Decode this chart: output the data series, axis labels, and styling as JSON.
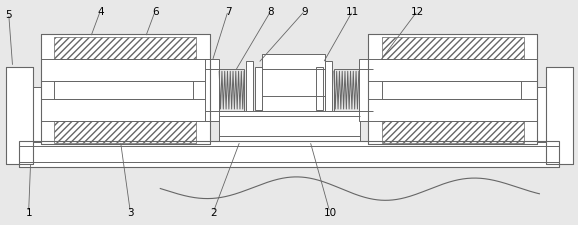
{
  "fig_w": 5.78,
  "fig_h": 2.26,
  "dpi": 100,
  "lc": "#666666",
  "bg": "#e8e8e8",
  "fs": 7.5
}
